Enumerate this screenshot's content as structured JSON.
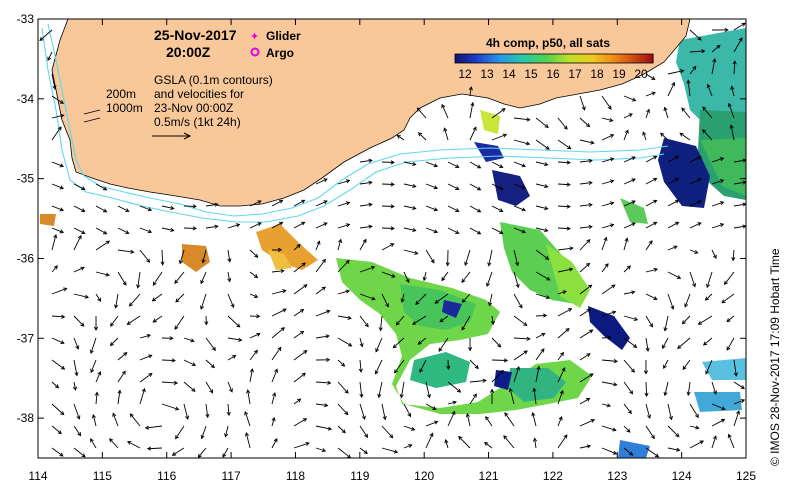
{
  "map": {
    "date": "25-Nov-2017",
    "time": "20:00Z",
    "legend_markers": [
      {
        "label": "Glider",
        "symbol": "✦",
        "color": "#e000e0"
      },
      {
        "label": "Argo",
        "symbol": "◎",
        "color": "#e000e0"
      }
    ],
    "gsla_note": [
      "GSLA (0.1m contours)",
      "and velocities for",
      "23-Nov 00:00Z",
      "0.5m/s (1kt 24h)"
    ],
    "isobaths": [
      "200m",
      "1000m"
    ],
    "credit": "© IMOS 28-Nov-2017 17:09 Hobart Time",
    "colors": {
      "land": "#f9c89a",
      "coast": "#000000",
      "isobath": "#5fd8ee",
      "arrow": "#000000"
    }
  },
  "colorbar": {
    "title": "4h comp, p50, all sats",
    "ticks": [
      "12",
      "13",
      "14",
      "15",
      "16",
      "17",
      "18",
      "19",
      "20"
    ],
    "range": [
      12,
      21
    ]
  },
  "axes": {
    "x_ticks": [
      "114",
      "115",
      "116",
      "117",
      "118",
      "119",
      "120",
      "121",
      "122",
      "123",
      "124",
      "125"
    ],
    "y_ticks": [
      "-33",
      "-34",
      "-35",
      "-36",
      "-37",
      "-38"
    ],
    "x_range": [
      114,
      125
    ],
    "y_range": [
      -38.5,
      -33
    ]
  }
}
